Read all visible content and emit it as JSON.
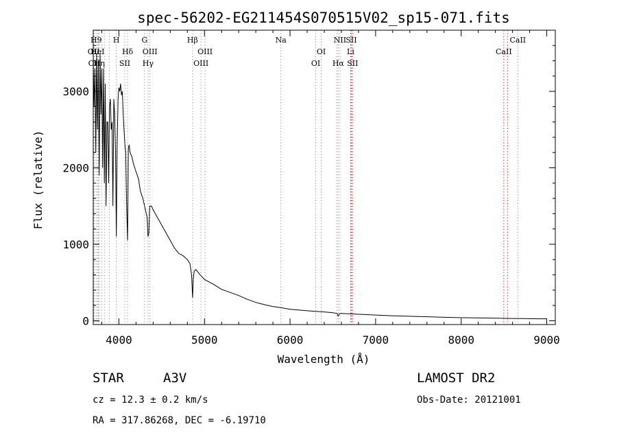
{
  "chart_data": {
    "type": "line",
    "title": "spec-56202-EG211454S070515V02_sp15-071.fits",
    "xlabel": "Wavelength (Å)",
    "ylabel": "Flux (relative)",
    "xlim": [
      3700,
      9100
    ],
    "ylim": [
      -50,
      3800
    ],
    "xticks": [
      4000,
      5000,
      6000,
      7000,
      8000,
      9000
    ],
    "yticks": [
      0,
      1000,
      2000,
      3000
    ],
    "grid": false,
    "line_color": "#000000",
    "series": [
      {
        "x": [
          3700,
          3710,
          3720,
          3730,
          3740,
          3750,
          3760,
          3770,
          3780,
          3790,
          3800,
          3810,
          3820,
          3830,
          3840,
          3850,
          3860,
          3870,
          3880,
          3890,
          3900,
          3910,
          3920,
          3930,
          3940,
          3950,
          3960,
          3970,
          3980,
          3990,
          4000,
          4010,
          4020,
          4030,
          4040,
          4050,
          4060,
          4070,
          4080,
          4090,
          4101,
          4110,
          4120,
          4130,
          4150,
          4170,
          4200,
          4230,
          4250,
          4280,
          4300,
          4320,
          4330,
          4340,
          4350,
          4360,
          4380,
          4400,
          4450,
          4500,
          4550,
          4600,
          4650,
          4700,
          4750,
          4800,
          4830,
          4850,
          4861,
          4870,
          4880,
          4900,
          4950,
          5000,
          5100,
          5200,
          5300,
          5400,
          5500,
          5600,
          5700,
          5800,
          5900,
          6000,
          6200,
          6400,
          6500,
          6550,
          6563,
          6575,
          6600,
          6800,
          7000,
          7200,
          7500,
          7800,
          8000,
          8300,
          8600,
          8900,
          9000
        ],
        "y": [
          3400,
          2800,
          3300,
          2200,
          3500,
          2500,
          3400,
          1900,
          3500,
          2700,
          3300,
          2000,
          3300,
          1800,
          3100,
          1500,
          2600,
          2600,
          1800,
          2800,
          2900,
          2500,
          2600,
          1500,
          2900,
          2700,
          2200,
          1100,
          2300,
          2900,
          3050,
          3000,
          3100,
          2950,
          3000,
          2700,
          2500,
          2300,
          2200,
          1500,
          1050,
          2250,
          2300,
          2200,
          2150,
          2050,
          1950,
          1850,
          1700,
          1600,
          1500,
          1400,
          1350,
          1100,
          1150,
          1500,
          1500,
          1450,
          1350,
          1250,
          1150,
          1050,
          950,
          880,
          850,
          800,
          750,
          600,
          300,
          550,
          650,
          670,
          600,
          540,
          480,
          410,
          370,
          330,
          280,
          240,
          210,
          185,
          170,
          150,
          130,
          115,
          105,
          95,
          60,
          90,
          95,
          85,
          75,
          65,
          55,
          45,
          40,
          35,
          30,
          25,
          25
        ]
      }
    ],
    "line_labels": [
      {
        "x": 3705,
        "text": "OII",
        "row": 2,
        "color": "#888888"
      },
      {
        "x": 3712,
        "text": "OII",
        "row": 3,
        "color": "#888888"
      },
      {
        "x": 3734,
        "text": "H9",
        "row": 1,
        "color": "#888888"
      },
      {
        "x": 3760,
        "text": "",
        "row": 1,
        "color": "#888888"
      },
      {
        "x": 3750,
        "text": "HeI",
        "row": 2,
        "color": "#888888"
      },
      {
        "x": 3770,
        "text": "Hη",
        "row": 3,
        "color": "#888888"
      },
      {
        "x": 3798,
        "text": "",
        "row": 2,
        "color": "#888888"
      },
      {
        "x": 3835,
        "text": "",
        "row": 2,
        "color": "#888888"
      },
      {
        "x": 3889,
        "text": "",
        "row": 2,
        "color": "#888888"
      },
      {
        "x": 3970,
        "text": "H",
        "row": 1,
        "color": "#888888"
      },
      {
        "x": 4068,
        "text": "SII",
        "row": 3,
        "color": "#888888"
      },
      {
        "x": 4101,
        "text": "Hδ",
        "row": 2,
        "color": "#888888"
      },
      {
        "x": 4300,
        "text": "G",
        "row": 1,
        "color": "#888888"
      },
      {
        "x": 4340,
        "text": "Hγ",
        "row": 3,
        "color": "#888888"
      },
      {
        "x": 4363,
        "text": "OIII",
        "row": 2,
        "color": "#888888"
      },
      {
        "x": 4861,
        "text": "Hβ",
        "row": 1,
        "color": "#888888"
      },
      {
        "x": 4959,
        "text": "OIII",
        "row": 3,
        "color": "#888888"
      },
      {
        "x": 5007,
        "text": "OIII",
        "row": 2,
        "color": "#888888"
      },
      {
        "x": 5893,
        "text": "Na",
        "row": 1,
        "color": "#888888"
      },
      {
        "x": 6300,
        "text": "OI",
        "row": 3,
        "color": "#888888"
      },
      {
        "x": 6364,
        "text": "OI",
        "row": 2,
        "color": "#888888"
      },
      {
        "x": 6548,
        "text": "",
        "row": 1,
        "color": "#888888"
      },
      {
        "x": 6563,
        "text": "Hα",
        "row": 3,
        "color": "#888888"
      },
      {
        "x": 6584,
        "text": "NII",
        "row": 1,
        "color": "#888888"
      },
      {
        "x": 6708,
        "text": "Li",
        "row": 2,
        "color": "#cc0000"
      },
      {
        "x": 6716,
        "text": "SII",
        "row": 1,
        "color": "#cc0000"
      },
      {
        "x": 6731,
        "text": "SII",
        "row": 3,
        "color": "#cc0000"
      },
      {
        "x": 8498,
        "text": "CaII",
        "row": 2,
        "color": "#cc0000"
      },
      {
        "x": 8542,
        "text": "",
        "row": 2,
        "color": "#cc0000"
      },
      {
        "x": 8662,
        "text": "CaII",
        "row": 1,
        "color": "#888888"
      }
    ]
  },
  "info": {
    "object_type": "STAR",
    "subclass": "A3V",
    "survey": "LAMOST DR2",
    "cz": "cz = 12.3 ± 0.2 km/s",
    "obs_date": "Obs-Date: 20121001",
    "coords": "RA = 317.86268, DEC =  -6.19710"
  }
}
